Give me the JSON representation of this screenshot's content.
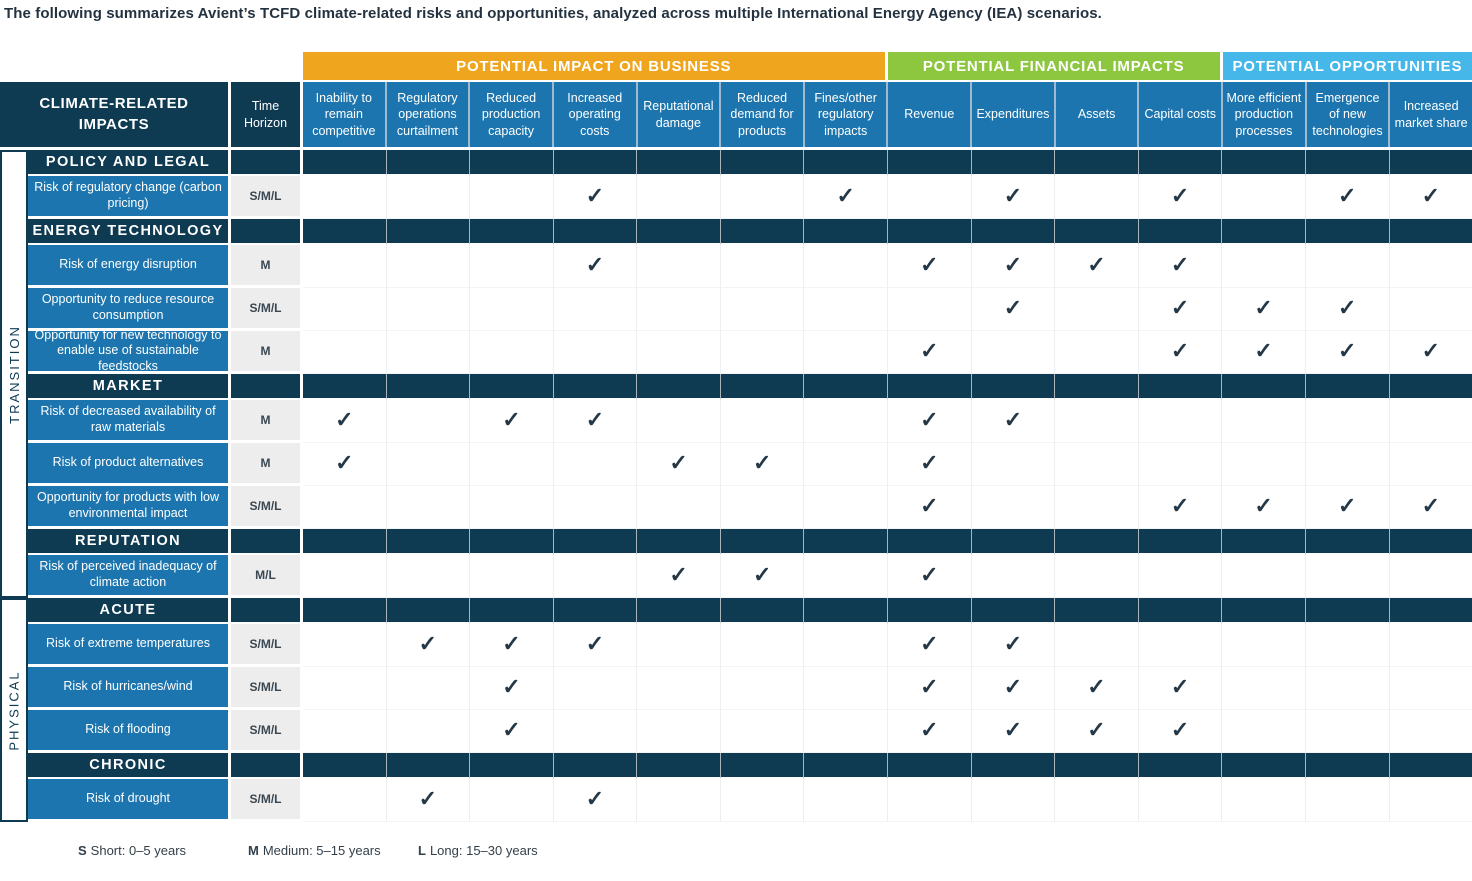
{
  "title": "The following summarizes Avient’s TCFD climate-related risks and opportunities, analyzed across multiple International Energy Agency (IEA) scenarios.",
  "colors": {
    "navy": "#0E3A52",
    "blue": "#1C75AE",
    "orange": "#F0A51E",
    "green": "#8DC63F",
    "cyan": "#45B7E8",
    "time_cell_gray": "#EDEDEE",
    "check": "#243847"
  },
  "table": {
    "corner_header": "CLIMATE-RELATED IMPACTS",
    "time_header": "Time Horizon",
    "groups": [
      {
        "label": "POTENTIAL IMPACT ON BUSINESS",
        "color": "#F0A51E",
        "span": 7
      },
      {
        "label": "POTENTIAL FINANCIAL IMPACTS",
        "color": "#8DC63F",
        "span": 4
      },
      {
        "label": "POTENTIAL OPPORTUNITIES",
        "color": "#45B7E8",
        "span": 3
      }
    ],
    "columns": [
      "Inability to remain competitive",
      "Regulatory operations curtailment",
      "Reduced production capacity",
      "Increased operating costs",
      "Reputational damage",
      "Reduced demand for products",
      "Fines/other regulatory impacts",
      "Revenue",
      "Expenditures",
      "Assets",
      "Capital costs",
      "More efficient production processes",
      "Emergence of new technologies",
      "Increased market share"
    ],
    "side_groups": [
      {
        "label": "TRANSITION"
      },
      {
        "label": "PHYSICAL"
      }
    ],
    "rows": [
      {
        "type": "section",
        "label": "POLICY AND LEGAL"
      },
      {
        "type": "data",
        "label": "Risk of regulatory change (carbon pricing)",
        "time": "S/M/L",
        "checks": [
          4,
          7,
          9,
          11,
          13,
          14
        ]
      },
      {
        "type": "section",
        "label": "ENERGY TECHNOLOGY"
      },
      {
        "type": "data",
        "label": "Risk of energy disruption",
        "time": "M",
        "checks": [
          4,
          8,
          9,
          10,
          11
        ]
      },
      {
        "type": "data",
        "label": "Opportunity to reduce resource consumption",
        "time": "S/M/L",
        "checks": [
          9,
          11,
          12,
          13
        ]
      },
      {
        "type": "data",
        "label": "Opportunity for new technology to enable use of sustainable feedstocks",
        "time": "M",
        "checks": [
          8,
          11,
          12,
          13,
          14
        ]
      },
      {
        "type": "section",
        "label": "MARKET"
      },
      {
        "type": "data",
        "label": "Risk of decreased availability of raw materials",
        "time": "M",
        "checks": [
          1,
          3,
          4,
          8,
          9
        ]
      },
      {
        "type": "data",
        "label": "Risk of product alternatives",
        "time": "M",
        "checks": [
          1,
          5,
          6,
          8
        ]
      },
      {
        "type": "data",
        "label": "Opportunity for products with low environmental impact",
        "time": "S/M/L",
        "checks": [
          8,
          11,
          12,
          13,
          14
        ]
      },
      {
        "type": "section",
        "label": "REPUTATION"
      },
      {
        "type": "data",
        "label": "Risk of perceived inadequacy of climate action",
        "time": "M/L",
        "checks": [
          5,
          6,
          8
        ]
      },
      {
        "type": "section",
        "label": "ACUTE"
      },
      {
        "type": "data",
        "label": "Risk of extreme temperatures",
        "time": "S/M/L",
        "checks": [
          2,
          3,
          4,
          8,
          9
        ]
      },
      {
        "type": "data",
        "label": "Risk of hurricanes/wind",
        "time": "S/M/L",
        "checks": [
          3,
          8,
          9,
          10,
          11
        ]
      },
      {
        "type": "data",
        "label": "Risk of flooding",
        "time": "S/M/L",
        "checks": [
          3,
          8,
          9,
          10,
          11
        ]
      },
      {
        "type": "section",
        "label": "CHRONIC"
      },
      {
        "type": "data",
        "label": "Risk of drought",
        "time": "S/M/L",
        "checks": [
          2,
          4
        ]
      }
    ],
    "check_glyph": "✓"
  },
  "legend": [
    {
      "key": "S",
      "text": "Short: 0–5 years"
    },
    {
      "key": "M",
      "text": "Medium: 5–15 years"
    },
    {
      "key": "L",
      "text": "Long: 15–30 years"
    }
  ]
}
